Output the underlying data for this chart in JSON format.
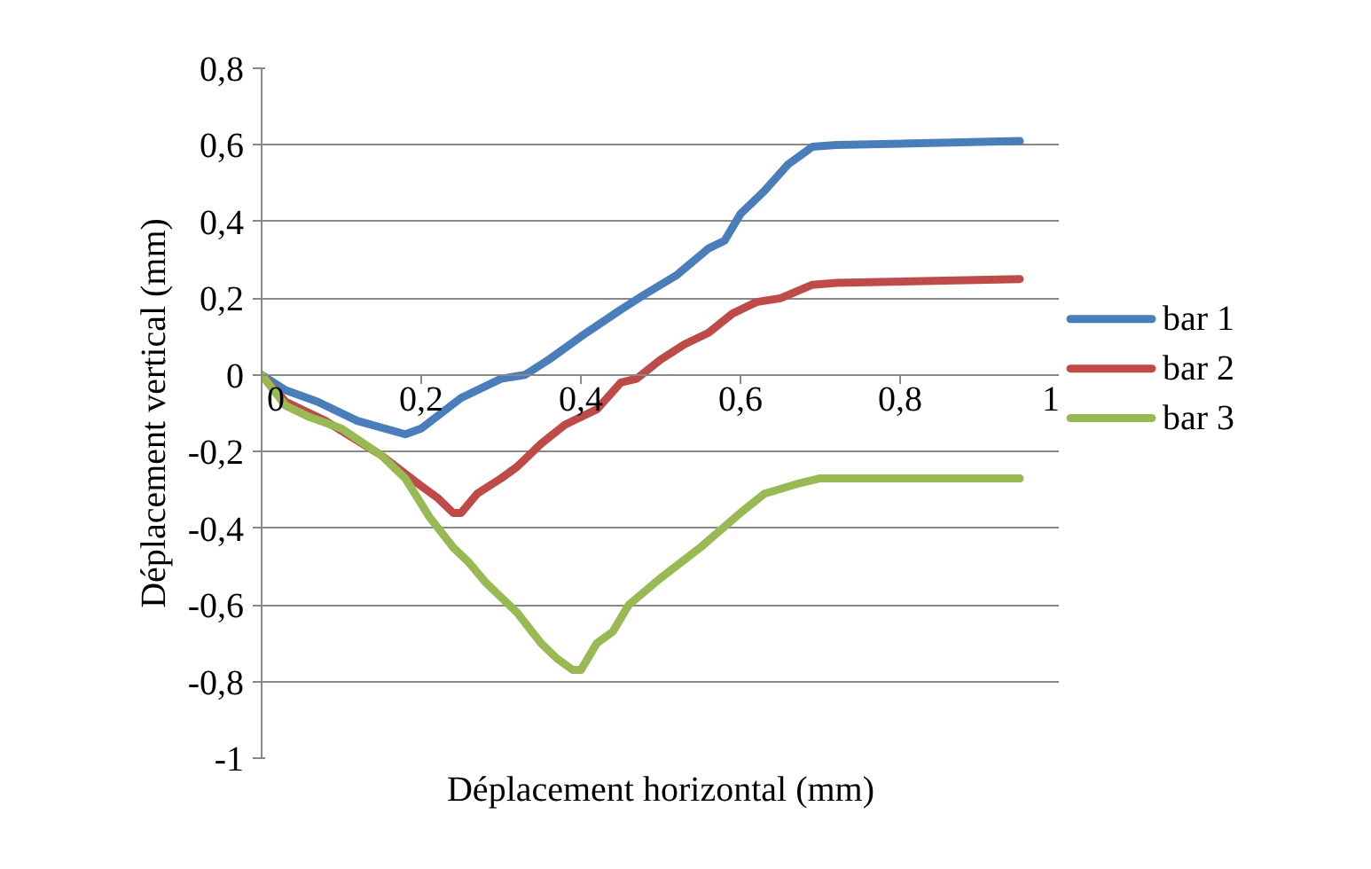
{
  "chart_data": {
    "type": "line",
    "xlabel": "Déplacement horizontal (mm)",
    "ylabel": "Déplacement vertical (mm)",
    "xlim": [
      0,
      1
    ],
    "ylim": [
      -1,
      0.8
    ],
    "xticks": [
      0,
      {
        "value": 0.2,
        "label": "0,2"
      },
      {
        "value": 0.4,
        "label": "0,4"
      },
      {
        "value": 0.6,
        "label": "0,6"
      },
      {
        "value": 0.8,
        "label": "0,8"
      },
      1
    ],
    "yticks": [
      -1,
      {
        "value": -0.8,
        "label": "-0,8"
      },
      {
        "value": -0.6,
        "label": "-0,6"
      },
      {
        "value": -0.4,
        "label": "-0,4"
      },
      {
        "value": -0.2,
        "label": "-0,2"
      },
      0,
      {
        "value": 0.2,
        "label": "0,2"
      },
      {
        "value": 0.4,
        "label": "0,4"
      },
      {
        "value": 0.6,
        "label": "0,6"
      },
      {
        "value": 0.8,
        "label": "0,8"
      }
    ],
    "grid": "y",
    "legend": "right",
    "marker": "none",
    "line_style": "solid",
    "series": [
      {
        "name": "bar 1",
        "color": "#4a7ebb",
        "x": [
          0,
          0.03,
          0.07,
          0.12,
          0.18,
          0.2,
          0.25,
          0.3,
          0.33,
          0.36,
          0.4,
          0.45,
          0.48,
          0.52,
          0.56,
          0.58,
          0.6,
          0.63,
          0.66,
          0.69,
          0.72,
          0.95
        ],
        "values": [
          0,
          -0.04,
          -0.07,
          -0.12,
          -0.155,
          -0.14,
          -0.06,
          -0.01,
          0,
          0.04,
          0.1,
          0.17,
          0.21,
          0.26,
          0.33,
          0.35,
          0.42,
          0.48,
          0.55,
          0.595,
          0.6,
          0.61
        ]
      },
      {
        "name": "bar 2",
        "color": "#be4b48",
        "x": [
          0,
          0.03,
          0.08,
          0.15,
          0.2,
          0.22,
          0.24,
          0.25,
          0.27,
          0.3,
          0.32,
          0.35,
          0.38,
          0.42,
          0.45,
          0.47,
          0.5,
          0.53,
          0.56,
          0.59,
          0.62,
          0.65,
          0.69,
          0.72,
          0.95
        ],
        "values": [
          0,
          -0.07,
          -0.12,
          -0.21,
          -0.29,
          -0.32,
          -0.36,
          -0.36,
          -0.31,
          -0.27,
          -0.24,
          -0.18,
          -0.13,
          -0.09,
          -0.02,
          -0.01,
          0.04,
          0.08,
          0.11,
          0.16,
          0.19,
          0.2,
          0.235,
          0.24,
          0.25
        ]
      },
      {
        "name": "bar 3",
        "color": "#98b954",
        "x": [
          0,
          0.03,
          0.06,
          0.1,
          0.15,
          0.18,
          0.21,
          0.24,
          0.26,
          0.28,
          0.3,
          0.32,
          0.35,
          0.37,
          0.39,
          0.4,
          0.42,
          0.44,
          0.46,
          0.5,
          0.55,
          0.6,
          0.63,
          0.67,
          0.7,
          0.95
        ],
        "values": [
          0,
          -0.08,
          -0.11,
          -0.14,
          -0.21,
          -0.27,
          -0.37,
          -0.45,
          -0.49,
          -0.54,
          -0.58,
          -0.62,
          -0.7,
          -0.74,
          -0.77,
          -0.77,
          -0.7,
          -0.67,
          -0.6,
          -0.53,
          -0.45,
          -0.36,
          -0.31,
          -0.285,
          -0.27,
          -0.27
        ]
      }
    ]
  }
}
